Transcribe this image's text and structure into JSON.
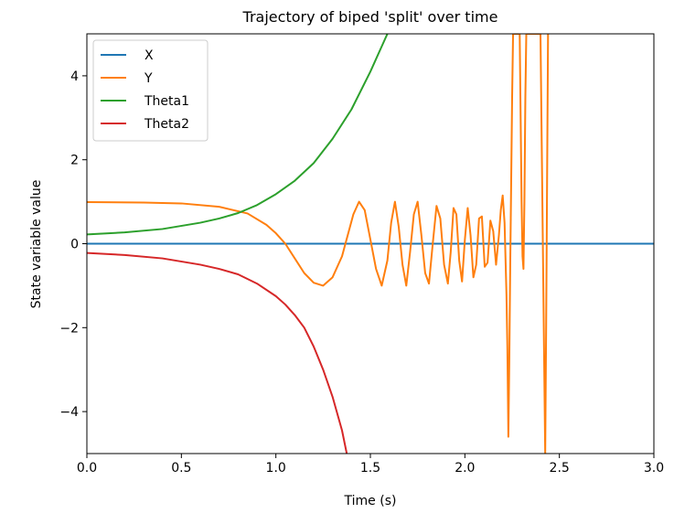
{
  "chart_data": {
    "type": "line",
    "title": "Trajectory of biped 'split' over time",
    "xlabel": "Time (s)",
    "ylabel": "State variable value",
    "xlim": [
      0.0,
      3.0
    ],
    "ylim": [
      -5,
      5
    ],
    "xticks": [
      "0.0",
      "0.5",
      "1.0",
      "1.5",
      "2.0",
      "2.5",
      "3.0"
    ],
    "yticks": [
      "−4",
      "−2",
      "0",
      "2",
      "4"
    ],
    "legend_position": "top-left",
    "grid": false,
    "series": [
      {
        "name": "X",
        "color": "#1f77b4",
        "points": [
          [
            0.0,
            0.0
          ],
          [
            3.0,
            0.0
          ]
        ]
      },
      {
        "name": "Y",
        "color": "#ff7f0e",
        "points": [
          [
            0.0,
            0.99
          ],
          [
            0.3,
            0.98
          ],
          [
            0.5,
            0.96
          ],
          [
            0.7,
            0.88
          ],
          [
            0.85,
            0.72
          ],
          [
            0.95,
            0.45
          ],
          [
            1.0,
            0.25
          ],
          [
            1.05,
            0.0
          ],
          [
            1.1,
            -0.35
          ],
          [
            1.15,
            -0.7
          ],
          [
            1.2,
            -0.93
          ],
          [
            1.25,
            -1.0
          ],
          [
            1.3,
            -0.8
          ],
          [
            1.35,
            -0.3
          ],
          [
            1.38,
            0.2
          ],
          [
            1.41,
            0.7
          ],
          [
            1.44,
            1.0
          ],
          [
            1.47,
            0.8
          ],
          [
            1.5,
            0.1
          ],
          [
            1.53,
            -0.6
          ],
          [
            1.56,
            -1.0
          ],
          [
            1.59,
            -0.4
          ],
          [
            1.61,
            0.5
          ],
          [
            1.63,
            1.0
          ],
          [
            1.65,
            0.4
          ],
          [
            1.67,
            -0.5
          ],
          [
            1.69,
            -1.0
          ],
          [
            1.71,
            -0.2
          ],
          [
            1.73,
            0.7
          ],
          [
            1.75,
            1.0
          ],
          [
            1.77,
            0.2
          ],
          [
            1.79,
            -0.7
          ],
          [
            1.81,
            -0.95
          ],
          [
            1.83,
            0.0
          ],
          [
            1.85,
            0.9
          ],
          [
            1.87,
            0.6
          ],
          [
            1.89,
            -0.5
          ],
          [
            1.91,
            -0.95
          ],
          [
            1.925,
            -0.2
          ],
          [
            1.94,
            0.85
          ],
          [
            1.955,
            0.7
          ],
          [
            1.97,
            -0.4
          ],
          [
            1.985,
            -0.9
          ],
          [
            2.0,
            0.1
          ],
          [
            2.015,
            0.85
          ],
          [
            2.03,
            0.2
          ],
          [
            2.045,
            -0.8
          ],
          [
            2.06,
            -0.5
          ],
          [
            2.075,
            0.6
          ],
          [
            2.09,
            0.65
          ],
          [
            2.105,
            -0.55
          ],
          [
            2.12,
            -0.45
          ],
          [
            2.135,
            0.55
          ],
          [
            2.15,
            0.3
          ],
          [
            2.165,
            -0.5
          ],
          [
            2.18,
            0.2
          ],
          [
            2.19,
            0.8
          ],
          [
            2.2,
            1.15
          ],
          [
            2.21,
            0.5
          ],
          [
            2.22,
            -1.2
          ],
          [
            2.225,
            -2.5
          ],
          [
            2.23,
            -4.6
          ],
          [
            2.235,
            -2.8
          ],
          [
            2.24,
            -0.5
          ],
          [
            2.245,
            1.5
          ],
          [
            2.25,
            3.5
          ],
          [
            2.255,
            5.0
          ],
          [
            2.29,
            5.0
          ],
          [
            2.295,
            3.0
          ],
          [
            2.3,
            1.0
          ],
          [
            2.305,
            -0.3
          ],
          [
            2.31,
            -0.6
          ],
          [
            2.315,
            1.0
          ],
          [
            2.32,
            3.5
          ],
          [
            2.325,
            5.0
          ],
          [
            2.4,
            5.0
          ],
          [
            2.405,
            3.0
          ],
          [
            2.41,
            1.0
          ],
          [
            2.415,
            -1.0
          ],
          [
            2.42,
            -3.0
          ],
          [
            2.425,
            -5.0
          ],
          [
            2.43,
            -2.0
          ],
          [
            2.435,
            1.5
          ],
          [
            2.44,
            5.0
          ]
        ]
      },
      {
        "name": "Theta1",
        "color": "#2ca02c",
        "points": [
          [
            0.0,
            0.22
          ],
          [
            0.2,
            0.27
          ],
          [
            0.4,
            0.35
          ],
          [
            0.6,
            0.5
          ],
          [
            0.7,
            0.6
          ],
          [
            0.8,
            0.73
          ],
          [
            0.9,
            0.92
          ],
          [
            1.0,
            1.18
          ],
          [
            1.1,
            1.5
          ],
          [
            1.2,
            1.92
          ],
          [
            1.3,
            2.5
          ],
          [
            1.4,
            3.2
          ],
          [
            1.5,
            4.1
          ],
          [
            1.56,
            4.7
          ],
          [
            1.59,
            5.0
          ]
        ]
      },
      {
        "name": "Theta2",
        "color": "#d62728",
        "points": [
          [
            0.0,
            -0.22
          ],
          [
            0.2,
            -0.27
          ],
          [
            0.4,
            -0.35
          ],
          [
            0.6,
            -0.5
          ],
          [
            0.7,
            -0.6
          ],
          [
            0.8,
            -0.73
          ],
          [
            0.9,
            -0.95
          ],
          [
            1.0,
            -1.25
          ],
          [
            1.05,
            -1.45
          ],
          [
            1.1,
            -1.7
          ],
          [
            1.15,
            -2.0
          ],
          [
            1.2,
            -2.45
          ],
          [
            1.25,
            -3.0
          ],
          [
            1.3,
            -3.65
          ],
          [
            1.35,
            -4.45
          ],
          [
            1.375,
            -5.0
          ]
        ]
      }
    ]
  }
}
